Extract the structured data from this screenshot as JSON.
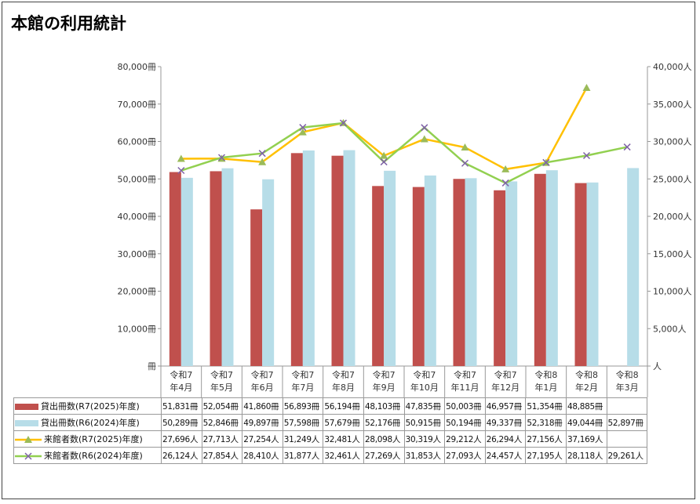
{
  "title": "本館の利用統計",
  "chart_data": {
    "type": "bar+line",
    "categories": [
      "令和7年4月",
      "令和7年5月",
      "令和7年6月",
      "令和7年7月",
      "令和7年8月",
      "令和7年9月",
      "令和7年10月",
      "令和7年11月",
      "令和7年12月",
      "令和8年1月",
      "令和8年2月",
      "令和8年3月"
    ],
    "category_lines": [
      [
        "令和7",
        "年4月"
      ],
      [
        "令和7",
        "年5月"
      ],
      [
        "令和7",
        "年6月"
      ],
      [
        "令和7",
        "年7月"
      ],
      [
        "令和7",
        "年8月"
      ],
      [
        "令和7",
        "年9月"
      ],
      [
        "令和7",
        "年10月"
      ],
      [
        "令和7",
        "年11月"
      ],
      [
        "令和7",
        "年12月"
      ],
      [
        "令和8",
        "年1月"
      ],
      [
        "令和8",
        "年2月"
      ],
      [
        "令和8",
        "年3月"
      ]
    ],
    "left_axis": {
      "unit": "冊",
      "ylim": [
        0,
        80000
      ],
      "ticks": [
        "冊",
        "10,000冊",
        "20,000冊",
        "30,000冊",
        "40,000冊",
        "50,000冊",
        "60,000冊",
        "70,000冊",
        "80,000冊"
      ]
    },
    "right_axis": {
      "unit": "人",
      "ylim": [
        0,
        40000
      ],
      "ticks": [
        "人",
        "5,000人",
        "10,000人",
        "15,000人",
        "20,000人",
        "25,000人",
        "30,000人",
        "35,000人",
        "40,000人"
      ]
    },
    "grid": false,
    "legend": "data-table",
    "series": [
      {
        "name": "貸出冊数(R7(2025)年度)",
        "type": "bar",
        "axis": "left",
        "color": "#c0504d",
        "values": [
          51831,
          52054,
          41860,
          56893,
          56194,
          48103,
          47835,
          50003,
          46957,
          51354,
          48885,
          null
        ],
        "labels": [
          "51,831冊",
          "52,054冊",
          "41,860冊",
          "56,893冊",
          "56,194冊",
          "48,103冊",
          "47,835冊",
          "50,003冊",
          "46,957冊",
          "51,354冊",
          "48,885冊",
          ""
        ]
      },
      {
        "name": "貸出冊数(R6(2024)年度)",
        "type": "bar",
        "axis": "left",
        "color": "#b7dde8",
        "values": [
          50289,
          52846,
          49897,
          57598,
          57679,
          52176,
          50915,
          50194,
          49337,
          52318,
          49044,
          52897
        ],
        "labels": [
          "50,289冊",
          "52,846冊",
          "49,897冊",
          "57,598冊",
          "57,679冊",
          "52,176冊",
          "50,915冊",
          "50,194冊",
          "49,337冊",
          "52,318冊",
          "49,044冊",
          "52,897冊"
        ]
      },
      {
        "name": "来館者数(R7(2025)年度)",
        "type": "line",
        "axis": "right",
        "color": "#ffc000",
        "marker": "triangle",
        "marker_color": "#9bbb59",
        "values": [
          27696,
          27713,
          27254,
          31249,
          32481,
          28098,
          30319,
          29212,
          26294,
          27156,
          37169,
          null
        ],
        "labels": [
          "27,696人",
          "27,713人",
          "27,254人",
          "31,249人",
          "32,481人",
          "28,098人",
          "30,319人",
          "29,212人",
          "26,294人",
          "27,156人",
          "37,169人",
          ""
        ]
      },
      {
        "name": "来館者数(R6(2024)年度)",
        "type": "line",
        "axis": "right",
        "color": "#92d050",
        "marker": "x",
        "marker_color": "#7f62a8",
        "values": [
          26124,
          27854,
          28410,
          31877,
          32461,
          27269,
          31853,
          27093,
          24457,
          27195,
          28118,
          29261
        ],
        "labels": [
          "26,124人",
          "27,854人",
          "28,410人",
          "31,877人",
          "32,461人",
          "27,269人",
          "31,853人",
          "27,093人",
          "24,457人",
          "27,195人",
          "28,118人",
          "29,261人"
        ]
      }
    ]
  }
}
